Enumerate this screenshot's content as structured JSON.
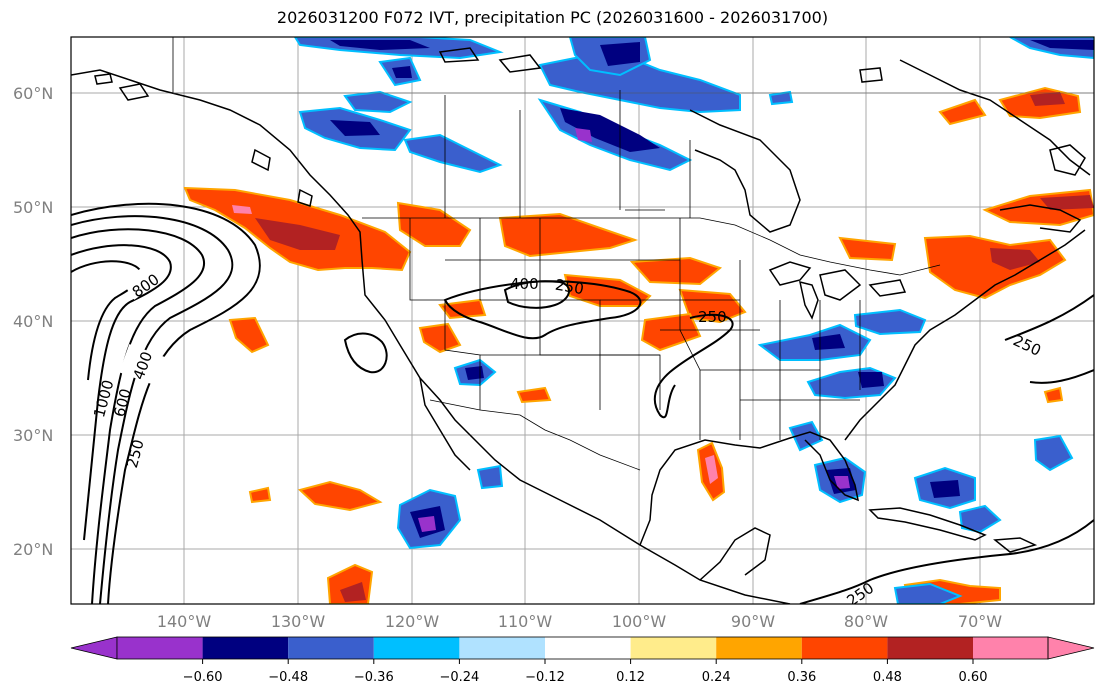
{
  "title": "2026031200 F072 IVT, precipitation PC (2026031600 - 2026031700)",
  "map": {
    "lat_labels": [
      "60°N",
      "50°N",
      "40°N",
      "30°N",
      "20°N"
    ],
    "lon_labels": [
      "140°W",
      "130°W",
      "120°W",
      "110°W",
      "100°W",
      "90°W",
      "80°W",
      "70°W"
    ],
    "ivt_contour_labels": {
      "c800": "800",
      "c600": "600",
      "c400_west": "400",
      "c1000": "1000",
      "c250_west": "250",
      "c400_interior": "400",
      "c250_interior": "250",
      "c250_central": "250",
      "c250_east": "250",
      "c250_south": "250"
    }
  },
  "colorbar": {
    "ticks": [
      "−0.60",
      "−0.48",
      "−0.36",
      "−0.24",
      "−0.12",
      "0.12",
      "0.24",
      "0.36",
      "0.48",
      "0.60"
    ],
    "colors": {
      "under": "#9932cc",
      "b1": "#000080",
      "b2": "#3a5fcd",
      "b3": "#00bfff",
      "b4": "#b0e2ff",
      "b5": "#ffffff",
      "b6": "#ffec8b",
      "b7": "#ffa500",
      "b8": "#ff4500",
      "b9": "#b22222",
      "over": "#ff82ab"
    }
  }
}
